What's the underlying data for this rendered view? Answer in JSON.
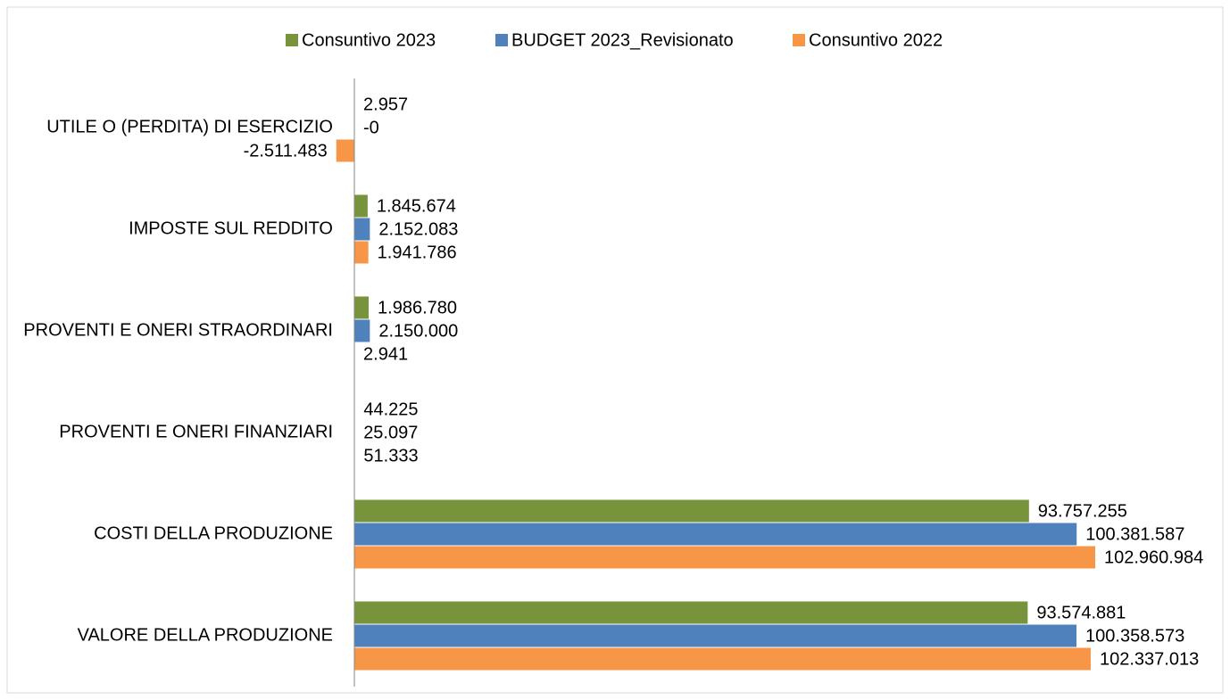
{
  "chart_data": {
    "type": "bar",
    "orientation": "horizontal",
    "categories": [
      "UTILE O (PERDITA) DI ESERCIZIO",
      "IMPOSTE SUL REDDITO",
      "PROVENTI E ONERI STRAORDINARI",
      "PROVENTI E ONERI FINANZIARI",
      "COSTI DELLA PRODUZIONE",
      "VALORE DELLA PRODUZIONE"
    ],
    "series": [
      {
        "name": "Consuntivo 2023",
        "color": "#77933c",
        "values": [
          2957,
          1845674,
          1986780,
          44225,
          93757255,
          93574881
        ],
        "value_labels": [
          "2.957",
          "1.845.674",
          "1.986.780",
          "44.225",
          "93.757.255",
          "93.574.881"
        ]
      },
      {
        "name": "BUDGET 2023_Revisionato",
        "color": "#4f81bd",
        "values": [
          0,
          2152083,
          2150000,
          25097,
          100381587,
          100358573
        ],
        "value_labels": [
          "-0",
          "2.152.083",
          "2.150.000",
          "25.097",
          "100.381.587",
          "100.358.573"
        ]
      },
      {
        "name": "Consuntivo 2022",
        "color": "#f79646",
        "values": [
          -2511483,
          1941786,
          2941,
          51333,
          102960984,
          102337013
        ],
        "value_labels": [
          "-2.511.483",
          "1.941.786",
          "2.941",
          "51.333",
          "102.960.984",
          "102.337.013"
        ]
      }
    ],
    "legend": "top"
  }
}
